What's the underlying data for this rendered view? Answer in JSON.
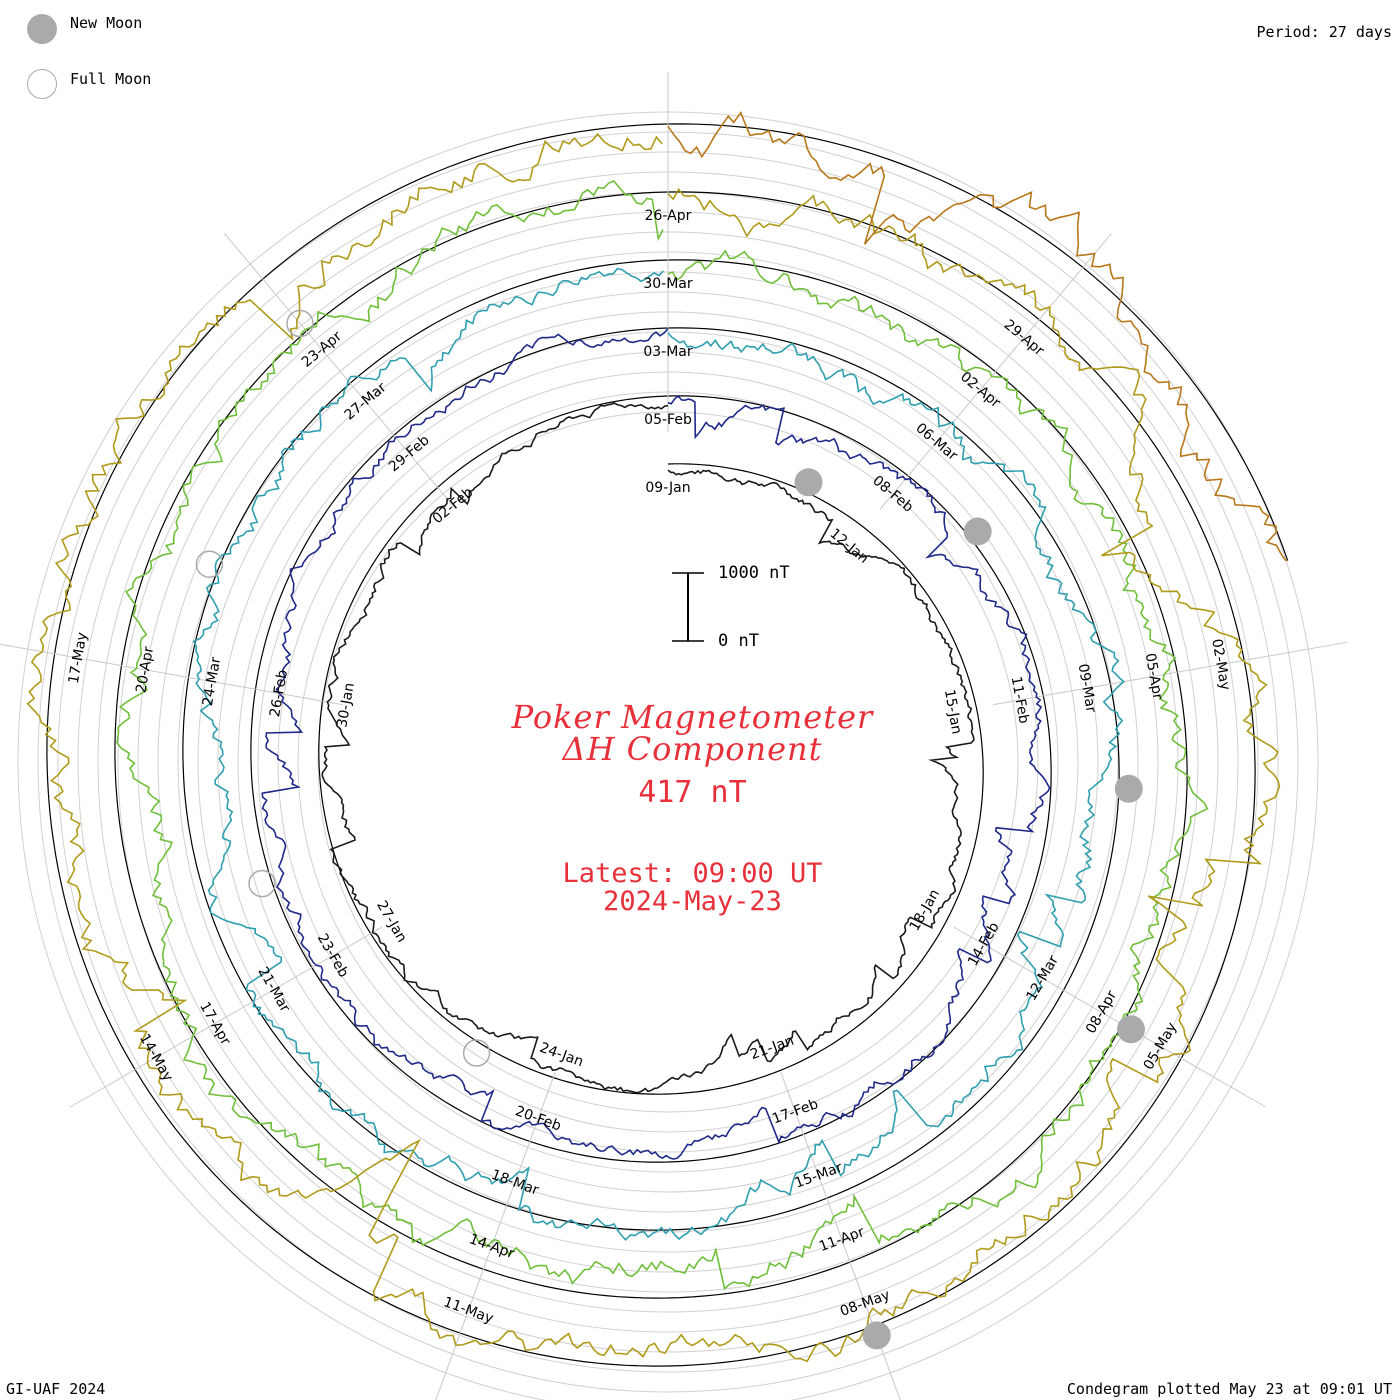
{
  "header": {
    "period_label": "Period: 27 days"
  },
  "legend": {
    "new_moon_label": "New Moon",
    "full_moon_label": "Full Moon",
    "new_moon_color": "#aaaaaa",
    "full_moon_color": "#aaaaaa"
  },
  "title": {
    "line1": "Poker Magnetometer",
    "line2": "ΔH Component",
    "value": "417 nT",
    "latest_time": "Latest: 09:00 UT",
    "latest_date": "2024-May-23",
    "color": "#e8303a"
  },
  "scale_bar": {
    "top_label": "1000 nT",
    "bottom_label": "0 nT"
  },
  "footer": {
    "left": "GI-UAF 2024",
    "right": "Condegram plotted May 23 at 09:01 UT"
  },
  "chart_data": {
    "type": "line",
    "period_days": 27,
    "units": "nT",
    "scale_bar_nT": 1000,
    "rotations": [
      {
        "color": "#1a1a1a",
        "dates": [
          "09-Jan",
          "12-Jan",
          "15-Jan",
          "18-Jan",
          "21-Jan",
          "24-Jan",
          "27-Jan",
          "30-Jan",
          "02-Feb"
        ]
      },
      {
        "color": "#1f2a8a",
        "dates": [
          "05-Feb",
          "08-Feb",
          "11-Feb",
          "14-Feb",
          "17-Feb",
          "20-Feb",
          "23-Feb",
          "26-Feb",
          "29-Feb"
        ]
      },
      {
        "color": "#2f9fb0",
        "dates": [
          "03-Mar",
          "06-Mar",
          "09-Mar",
          "12-Mar",
          "15-Mar",
          "18-Mar",
          "21-Mar",
          "24-Mar",
          "27-Mar"
        ]
      },
      {
        "color": "#6fbf3a",
        "dates": [
          "30-Mar",
          "02-Apr",
          "05-Apr",
          "08-Apr",
          "11-Apr",
          "14-Apr",
          "17-Apr",
          "20-Apr",
          "23-Apr"
        ]
      },
      {
        "color": "#b09a1a",
        "dates": [
          "26-Apr",
          "29-Apr",
          "02-May",
          "05-May",
          "08-May",
          "11-May",
          "14-May",
          "17-May"
        ]
      }
    ],
    "new_moons": [
      "2024-01-11",
      "2024-02-09",
      "2024-03-10",
      "2024-04-08",
      "2024-05-08"
    ],
    "full_moons": [
      "2024-01-25",
      "2024-02-24",
      "2024-03-25",
      "2024-04-23"
    ],
    "latest_value_nT": 417,
    "latest_time": "2024-May-23 09:00 UT"
  }
}
